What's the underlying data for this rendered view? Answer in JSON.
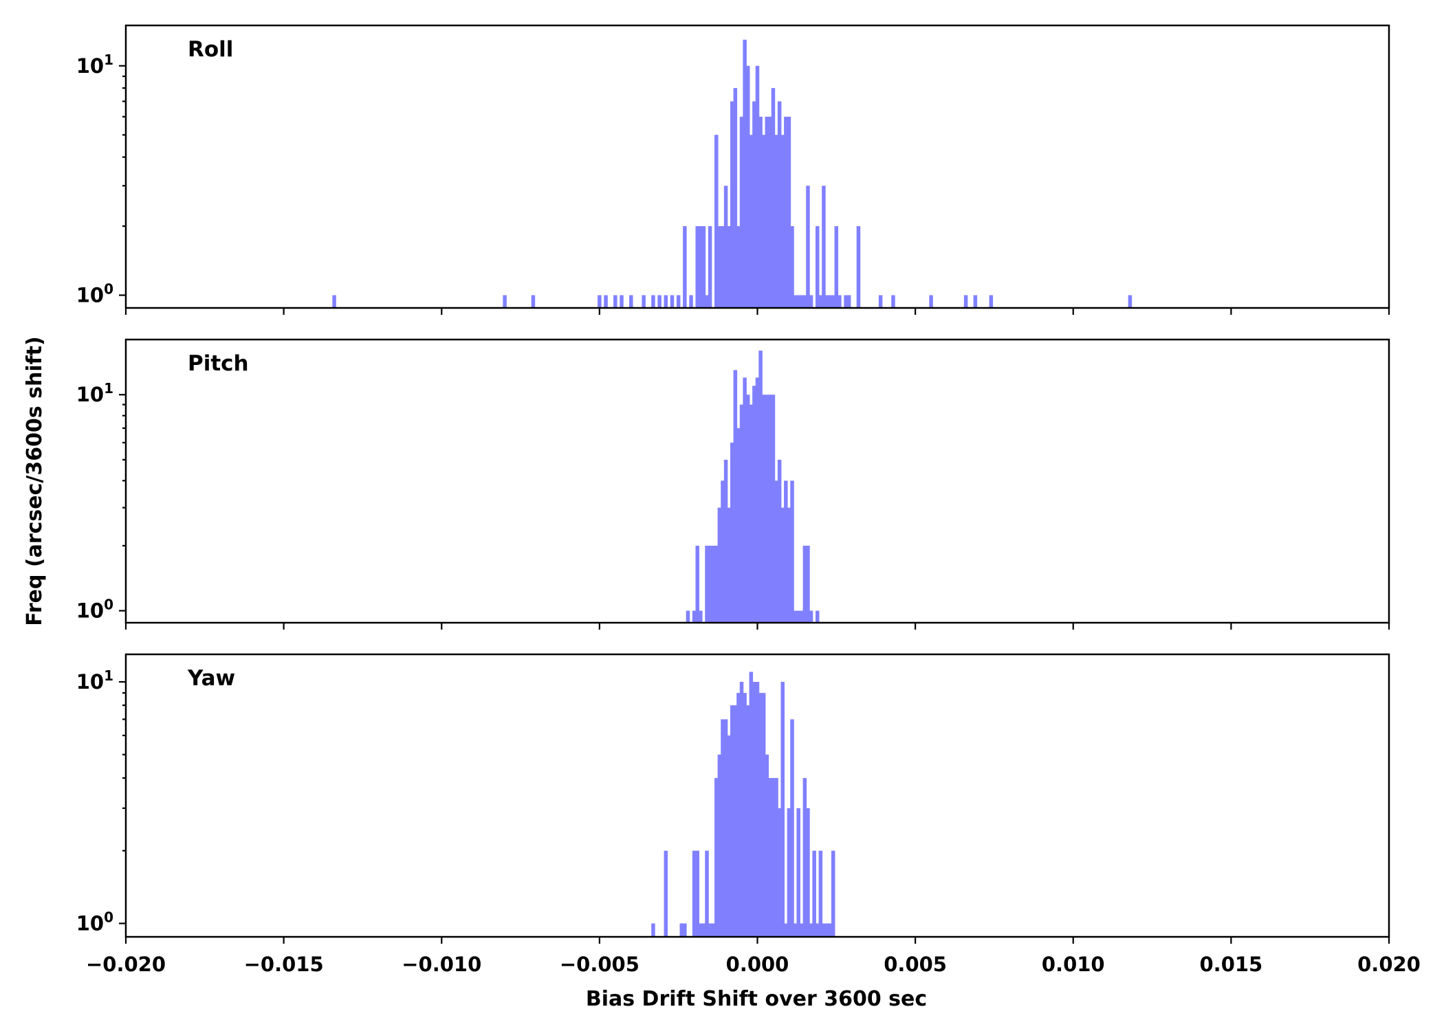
{
  "figure": {
    "xlabel": "Bias Drift Shift over 3600 sec",
    "ylabel": "Freq (arcsec/3600s shift)",
    "bar_color": "#8080ff"
  },
  "chart_data": [
    {
      "type": "bar",
      "panel_label": "Roll",
      "y_scale": "log",
      "ylim": [
        0.88,
        15
      ],
      "xlim": [
        -0.02,
        0.02
      ],
      "x_ticks": [
        "−0.020",
        "−0.015",
        "−0.010",
        "−0.005",
        "0.000",
        "0.005",
        "0.010",
        "0.015",
        "0.020"
      ],
      "x_tick_values": [
        -0.02,
        -0.015,
        -0.01,
        -0.005,
        0,
        0.005,
        0.01,
        0.015,
        0.02
      ],
      "y_ticks": [
        {
          "base": "10",
          "exp": "0",
          "value": 1
        },
        {
          "base": "10",
          "exp": "1",
          "value": 10
        }
      ],
      "bin_width": 0.00012,
      "bins": [
        [
          -0.0134,
          1
        ],
        [
          -0.008,
          1
        ],
        [
          -0.0071,
          1
        ],
        [
          -0.005,
          1
        ],
        [
          -0.0048,
          1
        ],
        [
          -0.0045,
          1
        ],
        [
          -0.0043,
          1
        ],
        [
          -0.004,
          1
        ],
        [
          -0.0036,
          1
        ],
        [
          -0.0033,
          1
        ],
        [
          -0.0031,
          1
        ],
        [
          -0.0029,
          1
        ],
        [
          -0.0027,
          1
        ],
        [
          -0.0025,
          1
        ],
        [
          -0.0023,
          2
        ],
        [
          -0.0021,
          1
        ],
        [
          -0.0019,
          2
        ],
        [
          -0.0018,
          2
        ],
        [
          -0.0017,
          2
        ],
        [
          -0.0016,
          1
        ],
        [
          -0.0015,
          2
        ],
        [
          -0.0013,
          5
        ],
        [
          -0.0012,
          2
        ],
        [
          -0.0011,
          2
        ],
        [
          -0.001,
          3
        ],
        [
          -0.0009,
          2
        ],
        [
          -0.0008,
          7
        ],
        [
          -0.0007,
          8
        ],
        [
          -0.0006,
          2
        ],
        [
          -0.0005,
          6
        ],
        [
          -0.0004,
          13
        ],
        [
          -0.0003,
          10
        ],
        [
          -0.0002,
          5
        ],
        [
          -0.0001,
          7
        ],
        [
          0.0,
          10
        ],
        [
          0.0001,
          6
        ],
        [
          0.0002,
          5
        ],
        [
          0.0003,
          6
        ],
        [
          0.0004,
          6
        ],
        [
          0.0005,
          8
        ],
        [
          0.0006,
          5
        ],
        [
          0.0007,
          7
        ],
        [
          0.0008,
          5
        ],
        [
          0.0009,
          6
        ],
        [
          0.001,
          6
        ],
        [
          0.0011,
          2
        ],
        [
          0.0012,
          1
        ],
        [
          0.0013,
          1
        ],
        [
          0.0014,
          1
        ],
        [
          0.0015,
          1
        ],
        [
          0.0016,
          3
        ],
        [
          0.0017,
          1
        ],
        [
          0.0019,
          2
        ],
        [
          0.002,
          1
        ],
        [
          0.0021,
          3
        ],
        [
          0.0022,
          1
        ],
        [
          0.0023,
          1
        ],
        [
          0.0024,
          1
        ],
        [
          0.0025,
          2
        ],
        [
          0.0026,
          1
        ],
        [
          0.0028,
          1
        ],
        [
          0.0029,
          1
        ],
        [
          0.0032,
          2
        ],
        [
          0.0039,
          1
        ],
        [
          0.0043,
          1
        ],
        [
          0.0055,
          1
        ],
        [
          0.0066,
          1
        ],
        [
          0.0069,
          1
        ],
        [
          0.0074,
          1
        ],
        [
          0.0118,
          1
        ]
      ]
    },
    {
      "type": "bar",
      "panel_label": "Pitch",
      "y_scale": "log",
      "ylim": [
        0.88,
        18
      ],
      "xlim": [
        -0.02,
        0.02
      ],
      "x_ticks": [
        "−0.020",
        "−0.015",
        "−0.010",
        "−0.005",
        "0.000",
        "0.005",
        "0.010",
        "0.015",
        "0.020"
      ],
      "x_tick_values": [
        -0.02,
        -0.015,
        -0.01,
        -0.005,
        0,
        0.005,
        0.01,
        0.015,
        0.02
      ],
      "y_ticks": [
        {
          "base": "10",
          "exp": "0",
          "value": 1
        },
        {
          "base": "10",
          "exp": "1",
          "value": 10
        }
      ],
      "bin_width": 0.00012,
      "bins": [
        [
          -0.0022,
          1
        ],
        [
          -0.002,
          1
        ],
        [
          -0.0019,
          2
        ],
        [
          -0.0018,
          1
        ],
        [
          -0.0016,
          2
        ],
        [
          -0.0015,
          2
        ],
        [
          -0.0014,
          2
        ],
        [
          -0.0013,
          2
        ],
        [
          -0.0012,
          3
        ],
        [
          -0.0011,
          4
        ],
        [
          -0.001,
          5
        ],
        [
          -0.0009,
          3
        ],
        [
          -0.0008,
          6
        ],
        [
          -0.0007,
          13
        ],
        [
          -0.0006,
          7
        ],
        [
          -0.0005,
          9
        ],
        [
          -0.0004,
          12
        ],
        [
          -0.0003,
          10
        ],
        [
          -0.0002,
          9
        ],
        [
          -0.0001,
          11
        ],
        [
          0.0,
          12
        ],
        [
          0.0001,
          16
        ],
        [
          0.0002,
          10
        ],
        [
          0.0003,
          10
        ],
        [
          0.0004,
          10
        ],
        [
          0.0005,
          10
        ],
        [
          0.0006,
          4
        ],
        [
          0.0007,
          5
        ],
        [
          0.0008,
          3
        ],
        [
          0.0009,
          4
        ],
        [
          0.001,
          3
        ],
        [
          0.0011,
          4
        ],
        [
          0.0012,
          1
        ],
        [
          0.0013,
          1
        ],
        [
          0.0014,
          1
        ],
        [
          0.0015,
          2
        ],
        [
          0.0016,
          2
        ],
        [
          0.0017,
          1
        ],
        [
          0.0019,
          1
        ]
      ]
    },
    {
      "type": "bar",
      "panel_label": "Yaw",
      "y_scale": "log",
      "ylim": [
        0.88,
        13
      ],
      "xlim": [
        -0.02,
        0.02
      ],
      "x_ticks": [
        "−0.020",
        "−0.015",
        "−0.010",
        "−0.005",
        "0.000",
        "0.005",
        "0.010",
        "0.015",
        "0.020"
      ],
      "x_tick_values": [
        -0.02,
        -0.015,
        -0.01,
        -0.005,
        0,
        0.005,
        0.01,
        0.015,
        0.02
      ],
      "y_ticks": [
        {
          "base": "10",
          "exp": "0",
          "value": 1
        },
        {
          "base": "10",
          "exp": "1",
          "value": 10
        }
      ],
      "bin_width": 0.00012,
      "bins": [
        [
          -0.0033,
          1
        ],
        [
          -0.0029,
          2
        ],
        [
          -0.0024,
          1
        ],
        [
          -0.0023,
          1
        ],
        [
          -0.002,
          2
        ],
        [
          -0.0019,
          2
        ],
        [
          -0.0018,
          1
        ],
        [
          -0.0017,
          1
        ],
        [
          -0.0016,
          2
        ],
        [
          -0.0015,
          1
        ],
        [
          -0.0014,
          1
        ],
        [
          -0.0013,
          4
        ],
        [
          -0.0012,
          5
        ],
        [
          -0.0011,
          7
        ],
        [
          -0.001,
          7
        ],
        [
          -0.0009,
          6
        ],
        [
          -0.0008,
          8
        ],
        [
          -0.0007,
          8
        ],
        [
          -0.0006,
          9
        ],
        [
          -0.0005,
          10
        ],
        [
          -0.0004,
          9
        ],
        [
          -0.0003,
          8
        ],
        [
          -0.0002,
          11
        ],
        [
          -0.0001,
          10
        ],
        [
          0.0,
          10
        ],
        [
          0.0001,
          9
        ],
        [
          0.0002,
          9
        ],
        [
          0.0003,
          5
        ],
        [
          0.0004,
          4
        ],
        [
          0.0005,
          4
        ],
        [
          0.0006,
          4
        ],
        [
          0.0007,
          3
        ],
        [
          0.0008,
          10
        ],
        [
          0.0009,
          1
        ],
        [
          0.001,
          3
        ],
        [
          0.0011,
          7
        ],
        [
          0.0012,
          1
        ],
        [
          0.0013,
          3
        ],
        [
          0.0014,
          1
        ],
        [
          0.0015,
          4
        ],
        [
          0.0016,
          3
        ],
        [
          0.0017,
          1
        ],
        [
          0.0018,
          2
        ],
        [
          0.0019,
          1
        ],
        [
          0.002,
          2
        ],
        [
          0.0021,
          1
        ],
        [
          0.0022,
          1
        ],
        [
          0.0023,
          1
        ],
        [
          0.0024,
          2
        ]
      ]
    }
  ]
}
